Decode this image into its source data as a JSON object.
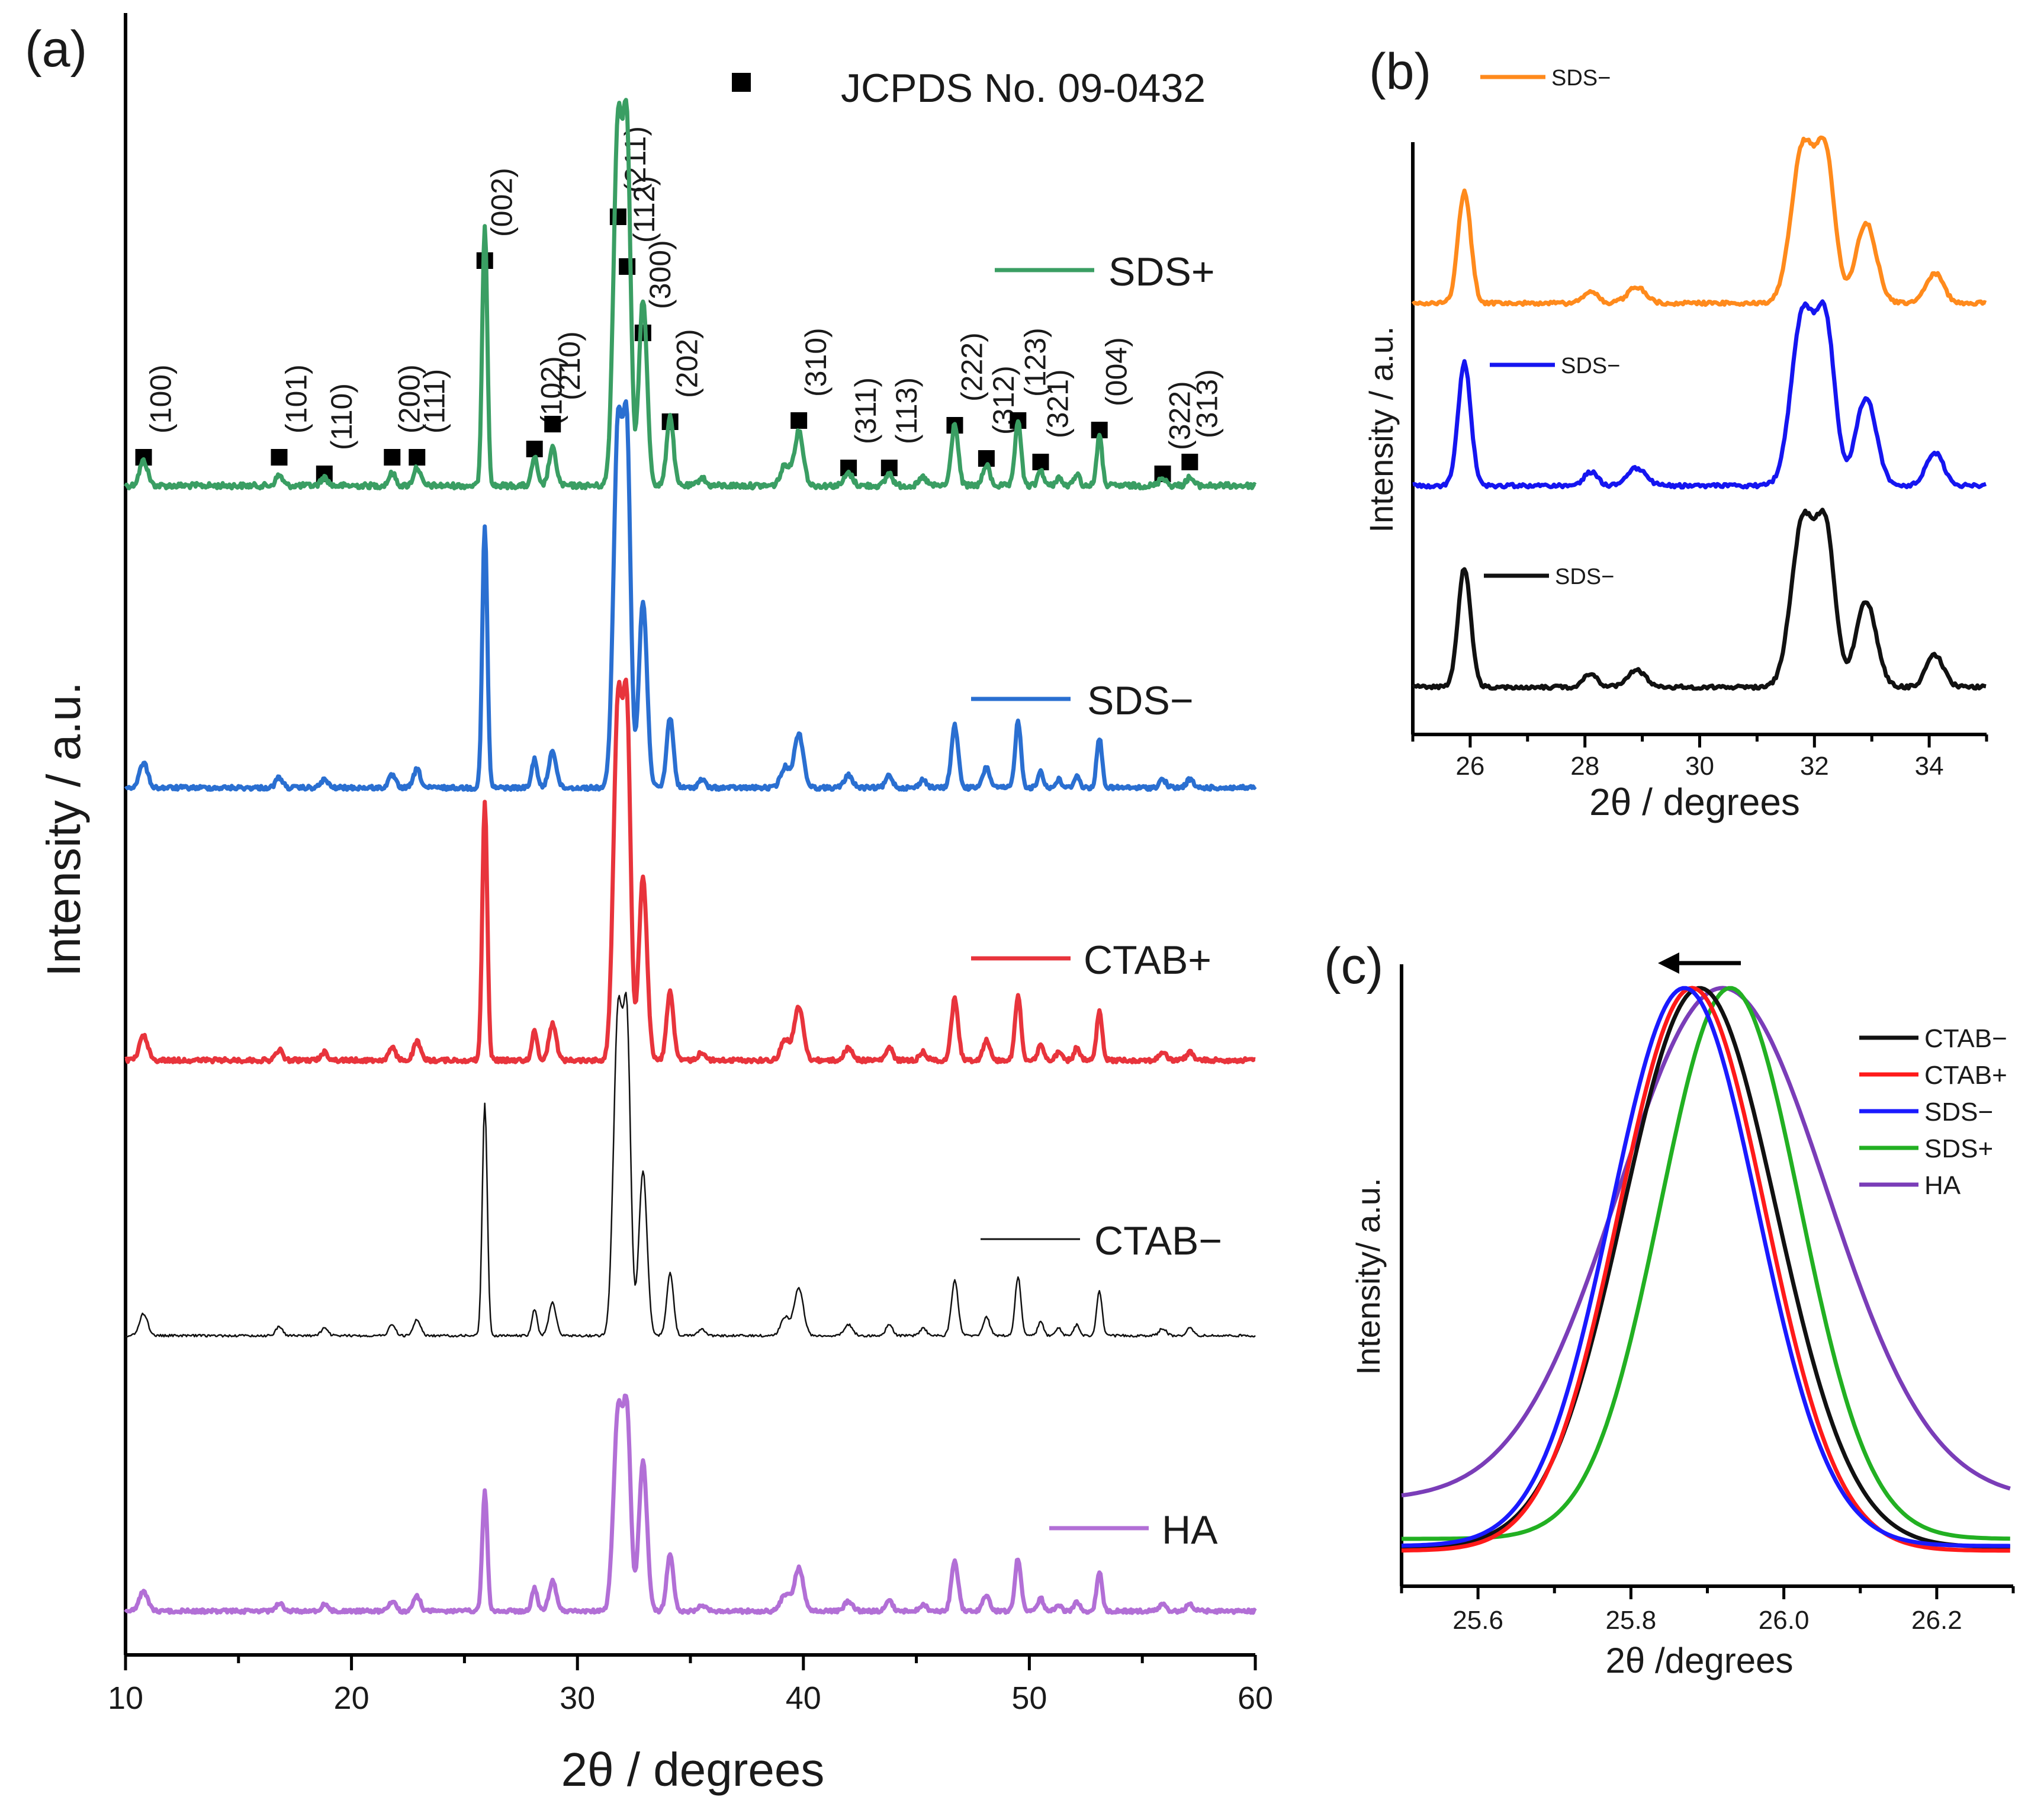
{
  "chart_data": [
    {
      "panel": "(a)",
      "type": "line",
      "panel_label": "(a)",
      "title": "",
      "xlabel": "2θ / degrees",
      "ylabel": "Intensity / a.u.",
      "xlim": [
        10,
        60
      ],
      "x_ticks": [
        10,
        20,
        30,
        40,
        50,
        60
      ],
      "x_tick_labels": [
        "10",
        "20",
        "30",
        "40",
        "50",
        "60"
      ],
      "reference_legend": "JCPDS No. 09-0432",
      "reference_peaks": [
        {
          "hkl": "(100)",
          "two_theta": 10.8
        },
        {
          "hkl": "(101)",
          "two_theta": 16.8
        },
        {
          "hkl": "(110)",
          "two_theta": 18.8
        },
        {
          "hkl": "(200)",
          "two_theta": 21.8
        },
        {
          "hkl": "(111)",
          "two_theta": 22.9
        },
        {
          "hkl": "(002)",
          "two_theta": 25.9
        },
        {
          "hkl": "(102)",
          "two_theta": 28.1
        },
        {
          "hkl": "(210)",
          "two_theta": 28.9
        },
        {
          "hkl": "(211)",
          "two_theta": 31.8
        },
        {
          "hkl": "(112)",
          "two_theta": 32.2
        },
        {
          "hkl": "(300)",
          "two_theta": 32.9
        },
        {
          "hkl": "(202)",
          "two_theta": 34.1
        },
        {
          "hkl": "(310)",
          "two_theta": 39.8
        },
        {
          "hkl": "(311)",
          "two_theta": 42.0
        },
        {
          "hkl": "(113)",
          "two_theta": 43.8
        },
        {
          "hkl": "(222)",
          "two_theta": 46.7
        },
        {
          "hkl": "(312)",
          "two_theta": 48.1
        },
        {
          "hkl": "(123)",
          "two_theta": 49.5
        },
        {
          "hkl": "(321)",
          "two_theta": 50.5
        },
        {
          "hkl": "(004)",
          "two_theta": 53.1
        },
        {
          "hkl": "(322)",
          "two_theta": 55.9
        },
        {
          "hkl": "(313)",
          "two_theta": 57.1
        }
      ],
      "series": [
        {
          "name": "SDS+",
          "color": "#3a9e63",
          "line": "thick"
        },
        {
          "name": "SDS−",
          "color": "#2a6fd1",
          "line": "thick"
        },
        {
          "name": "CTAB+",
          "color": "#e8343c",
          "line": "thick"
        },
        {
          "name": "CTAB−",
          "color": "#111111",
          "line": "thin"
        },
        {
          "name": "HA",
          "color": "#b26fd6",
          "line": "thick"
        }
      ]
    },
    {
      "panel": "(b)",
      "type": "line",
      "panel_label": "(b)",
      "xlabel": "2θ / degrees",
      "ylabel": "Intensity / a.u.",
      "xlim": [
        25,
        35
      ],
      "x_ticks": [
        26,
        28,
        30,
        32,
        34
      ],
      "x_tick_labels": [
        "26",
        "28",
        "30",
        "32",
        "34"
      ],
      "series": [
        {
          "name": "SDS−",
          "color": "#ff8a1c"
        },
        {
          "name": "SDS−",
          "color": "#1515f0"
        },
        {
          "name": "SDS−",
          "color": "#111111"
        }
      ]
    },
    {
      "panel": "(c)",
      "type": "line",
      "panel_label": "(c)",
      "xlabel": "2θ /degrees",
      "ylabel": "Intensity/ a.u.",
      "xlim": [
        25.5,
        26.3
      ],
      "x_ticks": [
        25.6,
        25.8,
        26.0,
        26.2
      ],
      "x_tick_labels": [
        "25.6",
        "25.8",
        "26.0",
        "26.2"
      ],
      "annotation": "leftward peak-shift arrow",
      "series": [
        {
          "name": "CTAB−",
          "color": "#111111",
          "peak": 25.89,
          "fwhm": 0.235
        },
        {
          "name": "CTAB+",
          "color": "#ff1a1a",
          "peak": 25.88,
          "fwhm": 0.225
        },
        {
          "name": "SDS−",
          "color": "#1a1aff",
          "peak": 25.87,
          "fwhm": 0.225
        },
        {
          "name": "SDS+",
          "color": "#22b022",
          "peak": 25.93,
          "fwhm": 0.215
        },
        {
          "name": "HA",
          "color": "#7a3db8",
          "peak": 25.92,
          "fwhm": 0.32
        }
      ]
    }
  ]
}
